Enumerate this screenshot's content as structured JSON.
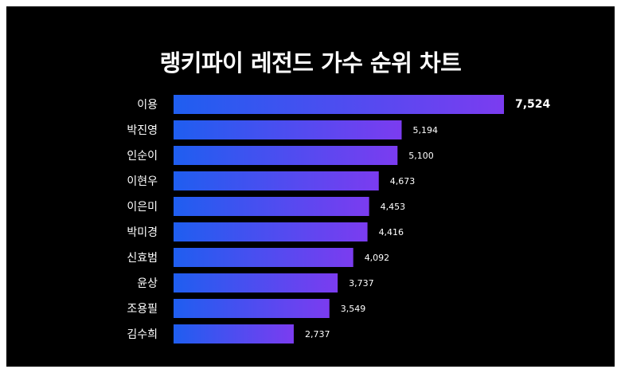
{
  "chart_data": {
    "type": "bar",
    "orientation": "horizontal",
    "title": "랭키파이 레전드 가수 순위 차트",
    "categories": [
      "이용",
      "박진영",
      "인순이",
      "이현우",
      "이은미",
      "박미경",
      "신효범",
      "윤상",
      "조용필",
      "김수희"
    ],
    "values": [
      7524,
      5194,
      5100,
      4673,
      4453,
      4416,
      4092,
      3737,
      3549,
      2737
    ],
    "value_labels": [
      "7,524",
      "5,194",
      "5,100",
      "4,673",
      "4,453",
      "4,416",
      "4,092",
      "3,737",
      "3,549",
      "2,737"
    ],
    "xlim": [
      0,
      7524
    ],
    "grid": false,
    "legend": "none"
  },
  "colors": {
    "background": "#000000",
    "bar_start": "#1f5ef0",
    "bar_end": "#7b3cf0",
    "text": "#ffffff"
  }
}
